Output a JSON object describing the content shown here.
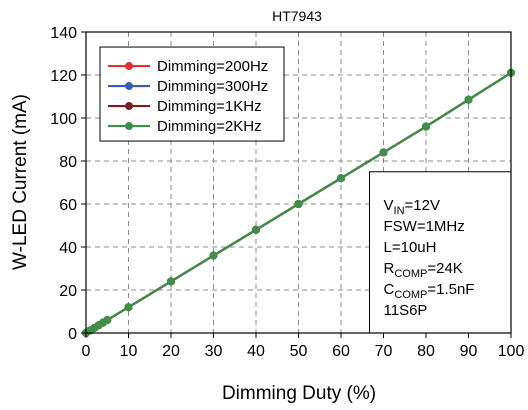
{
  "chart_data": {
    "type": "line",
    "title": "HT7943",
    "xlabel": "Dimming Duty (%)",
    "ylabel": "W-LED Current (mA)",
    "xlim": [
      0,
      100
    ],
    "ylim": [
      0,
      140
    ],
    "xticks": [
      0,
      10,
      20,
      30,
      40,
      50,
      60,
      70,
      80,
      90,
      100
    ],
    "yticks": [
      0,
      20,
      40,
      60,
      80,
      100,
      120,
      140
    ],
    "grid": true,
    "legend_position": "top-left",
    "series": [
      {
        "name": "Dimming=200Hz",
        "color": "#e8302a",
        "x": [
          0,
          1,
          2,
          3,
          4,
          5,
          10,
          20,
          30,
          40,
          50,
          60,
          70,
          80,
          90,
          100
        ],
        "y": [
          0,
          1.2,
          2.4,
          3.6,
          4.8,
          6.0,
          12.0,
          24.0,
          36.0,
          48.0,
          60.0,
          72.0,
          84.0,
          96.0,
          108.5,
          121.0
        ]
      },
      {
        "name": "Dimming=300Hz",
        "color": "#3a5bb5",
        "x": [
          0,
          1,
          2,
          3,
          4,
          5,
          10,
          20,
          30,
          40,
          50,
          60,
          70,
          80,
          90,
          100
        ],
        "y": [
          0,
          1.2,
          2.4,
          3.6,
          4.8,
          6.0,
          12.0,
          24.0,
          36.0,
          48.0,
          60.0,
          72.0,
          84.0,
          96.0,
          108.5,
          121.0
        ]
      },
      {
        "name": "Dimming=1KHz",
        "color": "#7a1e1e",
        "x": [
          0,
          1,
          2,
          3,
          4,
          5,
          10,
          20,
          30,
          40,
          50,
          60,
          70,
          80,
          90,
          100
        ],
        "y": [
          0,
          1.2,
          2.4,
          3.6,
          4.8,
          6.0,
          12.0,
          24.0,
          36.0,
          48.0,
          60.0,
          72.0,
          84.0,
          96.0,
          108.5,
          121.0
        ]
      },
      {
        "name": "Dimming=2KHz",
        "color": "#3f8f4a",
        "x": [
          0,
          1,
          2,
          3,
          4,
          5,
          10,
          20,
          30,
          40,
          50,
          60,
          70,
          80,
          90,
          100
        ],
        "y": [
          0,
          1.2,
          2.4,
          3.6,
          4.8,
          6.0,
          12.0,
          24.0,
          36.0,
          48.0,
          60.0,
          72.0,
          84.0,
          96.0,
          108.5,
          121.0
        ]
      }
    ],
    "annotation": [
      {
        "main": "V",
        "sub": "IN",
        "rest": "=12V"
      },
      {
        "main": "FSW=1MHz",
        "sub": "",
        "rest": ""
      },
      {
        "main": "L=10uH",
        "sub": "",
        "rest": ""
      },
      {
        "main": "R",
        "sub": "COMP",
        "rest": "=24K"
      },
      {
        "main": "C",
        "sub": "COMP",
        "rest": "=1.5nF"
      },
      {
        "main": "11S6P",
        "sub": "",
        "rest": ""
      }
    ]
  }
}
